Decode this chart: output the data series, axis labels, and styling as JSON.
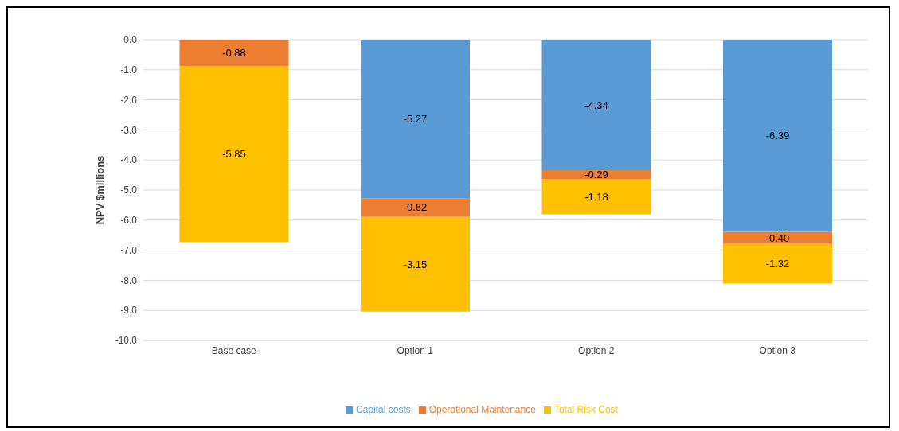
{
  "chart_data": {
    "type": "bar",
    "stacked": true,
    "ylabel": "NPV $millions",
    "categories": [
      "Base case",
      "Option 1",
      "Option 2",
      "Option 3"
    ],
    "series": [
      {
        "name": "Capital costs",
        "color": "#5b9bd5",
        "values": [
          null,
          -5.27,
          -4.34,
          -6.39
        ],
        "value_labels": [
          null,
          "-5.27",
          "-4.34",
          "-6.39"
        ]
      },
      {
        "name": "Operational Maintenance",
        "color": "#ed7d31",
        "values": [
          -0.88,
          -0.62,
          -0.29,
          -0.4
        ],
        "value_labels": [
          "-0.88",
          "-0.62",
          "-0.29",
          "-0.40"
        ]
      },
      {
        "name": "Total Risk Cost",
        "color": "#ffc000",
        "values": [
          -5.85,
          -3.15,
          -1.18,
          -1.32
        ],
        "value_labels": [
          "-5.85",
          "-3.15",
          "-1.18",
          "-1.32"
        ]
      }
    ],
    "ylim": [
      -10,
      0
    ],
    "yticks": [
      {
        "value": 0,
        "label": "0.0"
      },
      {
        "value": -1,
        "label": "-1.0"
      },
      {
        "value": -2,
        "label": "-2.0"
      },
      {
        "value": -3,
        "label": "-3.0"
      },
      {
        "value": -4,
        "label": "-4.0"
      },
      {
        "value": -5,
        "label": "-5.0"
      },
      {
        "value": -6,
        "label": "-6.0"
      },
      {
        "value": -7,
        "label": "-7.0"
      },
      {
        "value": -8,
        "label": "-8.0"
      },
      {
        "value": -9,
        "label": "-9.0"
      },
      {
        "value": -10,
        "label": "-10.0"
      }
    ],
    "grid": "y",
    "legend": "bottom"
  }
}
